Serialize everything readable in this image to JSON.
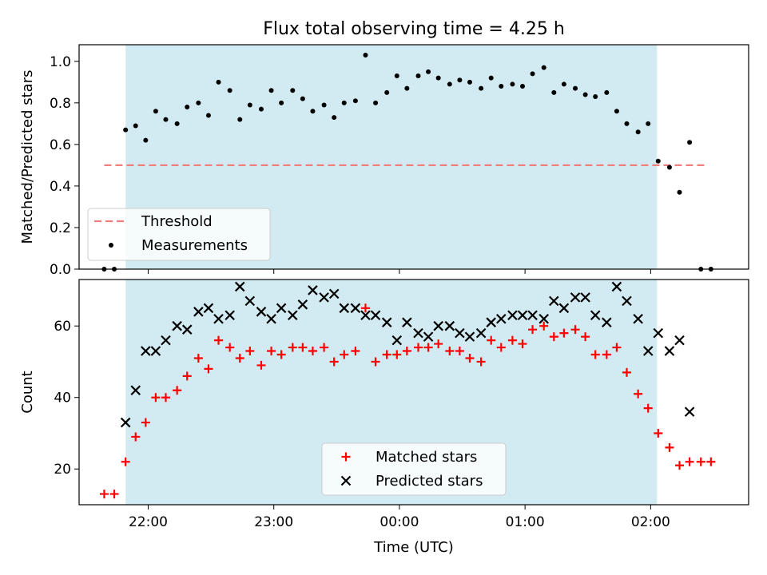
{
  "chart_data": {
    "title": "Flux total observing time = 4.25 h",
    "xlabel": "Time (UTC)",
    "x_tick_labels": [
      "22:00",
      "23:00",
      "00:00",
      "01:00",
      "02:00"
    ],
    "x_ticks_hours": [
      22,
      23,
      24,
      25,
      26
    ],
    "shaded_interval_hours": [
      21.82,
      26.05
    ],
    "top": {
      "type": "scatter",
      "ylabel": "Matched/Predicted stars",
      "ylim": [
        0,
        1.08
      ],
      "y_ticks": [
        0.0,
        0.2,
        0.4,
        0.6,
        0.8,
        1.0
      ],
      "y_tick_labels": [
        "0.0",
        "0.2",
        "0.4",
        "0.6",
        "0.8",
        "1.0"
      ],
      "legend": [
        "Threshold",
        "Measurements"
      ],
      "legend_position": "lower-left",
      "threshold": {
        "name": "Threshold",
        "y": 0.5,
        "x_range": [
          21.65,
          26.45
        ],
        "color": "#f08080"
      },
      "measurements": {
        "name": "Measurements",
        "color": "#000000",
        "x": [
          21.65,
          21.73,
          21.82,
          21.9,
          21.98,
          22.06,
          22.14,
          22.23,
          22.31,
          22.4,
          22.48,
          22.56,
          22.65,
          22.73,
          22.81,
          22.9,
          22.98,
          23.06,
          23.15,
          23.23,
          23.31,
          23.4,
          23.48,
          23.56,
          23.65,
          23.73,
          23.81,
          23.9,
          23.98,
          24.06,
          24.15,
          24.23,
          24.31,
          24.4,
          24.48,
          24.56,
          24.65,
          24.73,
          24.81,
          24.9,
          24.98,
          25.06,
          25.15,
          25.23,
          25.31,
          25.4,
          25.48,
          25.56,
          25.65,
          25.73,
          25.81,
          25.9,
          25.98,
          26.06,
          26.15,
          26.23,
          26.31,
          26.4,
          26.48
        ],
        "y": [
          0.0,
          0.0,
          0.67,
          0.69,
          0.62,
          0.76,
          0.72,
          0.7,
          0.78,
          0.8,
          0.74,
          0.9,
          0.86,
          0.72,
          0.79,
          0.77,
          0.86,
          0.8,
          0.86,
          0.82,
          0.76,
          0.79,
          0.73,
          0.8,
          0.81,
          1.03,
          0.8,
          0.85,
          0.93,
          0.87,
          0.93,
          0.95,
          0.92,
          0.89,
          0.91,
          0.9,
          0.87,
          0.92,
          0.88,
          0.89,
          0.88,
          0.94,
          0.97,
          0.85,
          0.89,
          0.87,
          0.84,
          0.83,
          0.85,
          0.76,
          0.7,
          0.66,
          0.7,
          0.52,
          0.49,
          0.37,
          0.61,
          0.0,
          0.0
        ]
      }
    },
    "bottom": {
      "type": "scatter",
      "ylabel": "Count",
      "ylim": [
        10,
        73
      ],
      "y_ticks": [
        20,
        40,
        60
      ],
      "y_tick_labels": [
        "20",
        "40",
        "60"
      ],
      "legend": [
        "Matched stars",
        "Predicted stars"
      ],
      "legend_position": "lower-center",
      "series": [
        {
          "name": "Matched stars",
          "marker": "plus",
          "color": "#ff0000",
          "x": [
            21.65,
            21.73,
            21.82,
            21.9,
            21.98,
            22.06,
            22.14,
            22.23,
            22.31,
            22.4,
            22.48,
            22.56,
            22.65,
            22.73,
            22.81,
            22.9,
            22.98,
            23.06,
            23.15,
            23.23,
            23.31,
            23.4,
            23.48,
            23.56,
            23.65,
            23.73,
            23.81,
            23.9,
            23.98,
            24.06,
            24.15,
            24.23,
            24.31,
            24.4,
            24.48,
            24.56,
            24.65,
            24.73,
            24.81,
            24.9,
            24.98,
            25.06,
            25.15,
            25.23,
            25.31,
            25.4,
            25.48,
            25.56,
            25.65,
            25.73,
            25.81,
            25.9,
            25.98,
            26.06,
            26.15,
            26.23,
            26.31,
            26.4,
            26.48
          ],
          "y": [
            13,
            13,
            22,
            29,
            33,
            40,
            40,
            42,
            46,
            51,
            48,
            56,
            54,
            51,
            53,
            49,
            53,
            52,
            54,
            54,
            53,
            54,
            50,
            52,
            53,
            65,
            50,
            52,
            52,
            53,
            54,
            54,
            55,
            53,
            53,
            51,
            50,
            56,
            54,
            56,
            55,
            59,
            60,
            57,
            58,
            59,
            57,
            52,
            52,
            54,
            47,
            41,
            37,
            30,
            26,
            21,
            22,
            22,
            22
          ]
        },
        {
          "name": "Predicted stars",
          "marker": "x",
          "color": "#000000",
          "x": [
            21.82,
            21.9,
            21.98,
            22.06,
            22.14,
            22.23,
            22.31,
            22.4,
            22.48,
            22.56,
            22.65,
            22.73,
            22.81,
            22.9,
            22.98,
            23.06,
            23.15,
            23.23,
            23.31,
            23.4,
            23.48,
            23.56,
            23.65,
            23.73,
            23.81,
            23.9,
            23.98,
            24.06,
            24.15,
            24.23,
            24.31,
            24.4,
            24.48,
            24.56,
            24.65,
            24.73,
            24.81,
            24.9,
            24.98,
            25.06,
            25.15,
            25.23,
            25.31,
            25.4,
            25.48,
            25.56,
            25.65,
            25.73,
            25.81,
            25.9,
            25.98,
            26.06,
            26.15,
            26.23,
            26.31
          ],
          "y": [
            33,
            42,
            53,
            53,
            56,
            60,
            59,
            64,
            65,
            62,
            63,
            71,
            67,
            64,
            62,
            65,
            63,
            66,
            70,
            68,
            69,
            65,
            65,
            63,
            63,
            61,
            56,
            61,
            58,
            57,
            60,
            60,
            58,
            57,
            58,
            61,
            62,
            63,
            63,
            63,
            62,
            67,
            65,
            68,
            68,
            63,
            61,
            71,
            67,
            62,
            53,
            58,
            53,
            56,
            36
          ]
        }
      ]
    }
  }
}
